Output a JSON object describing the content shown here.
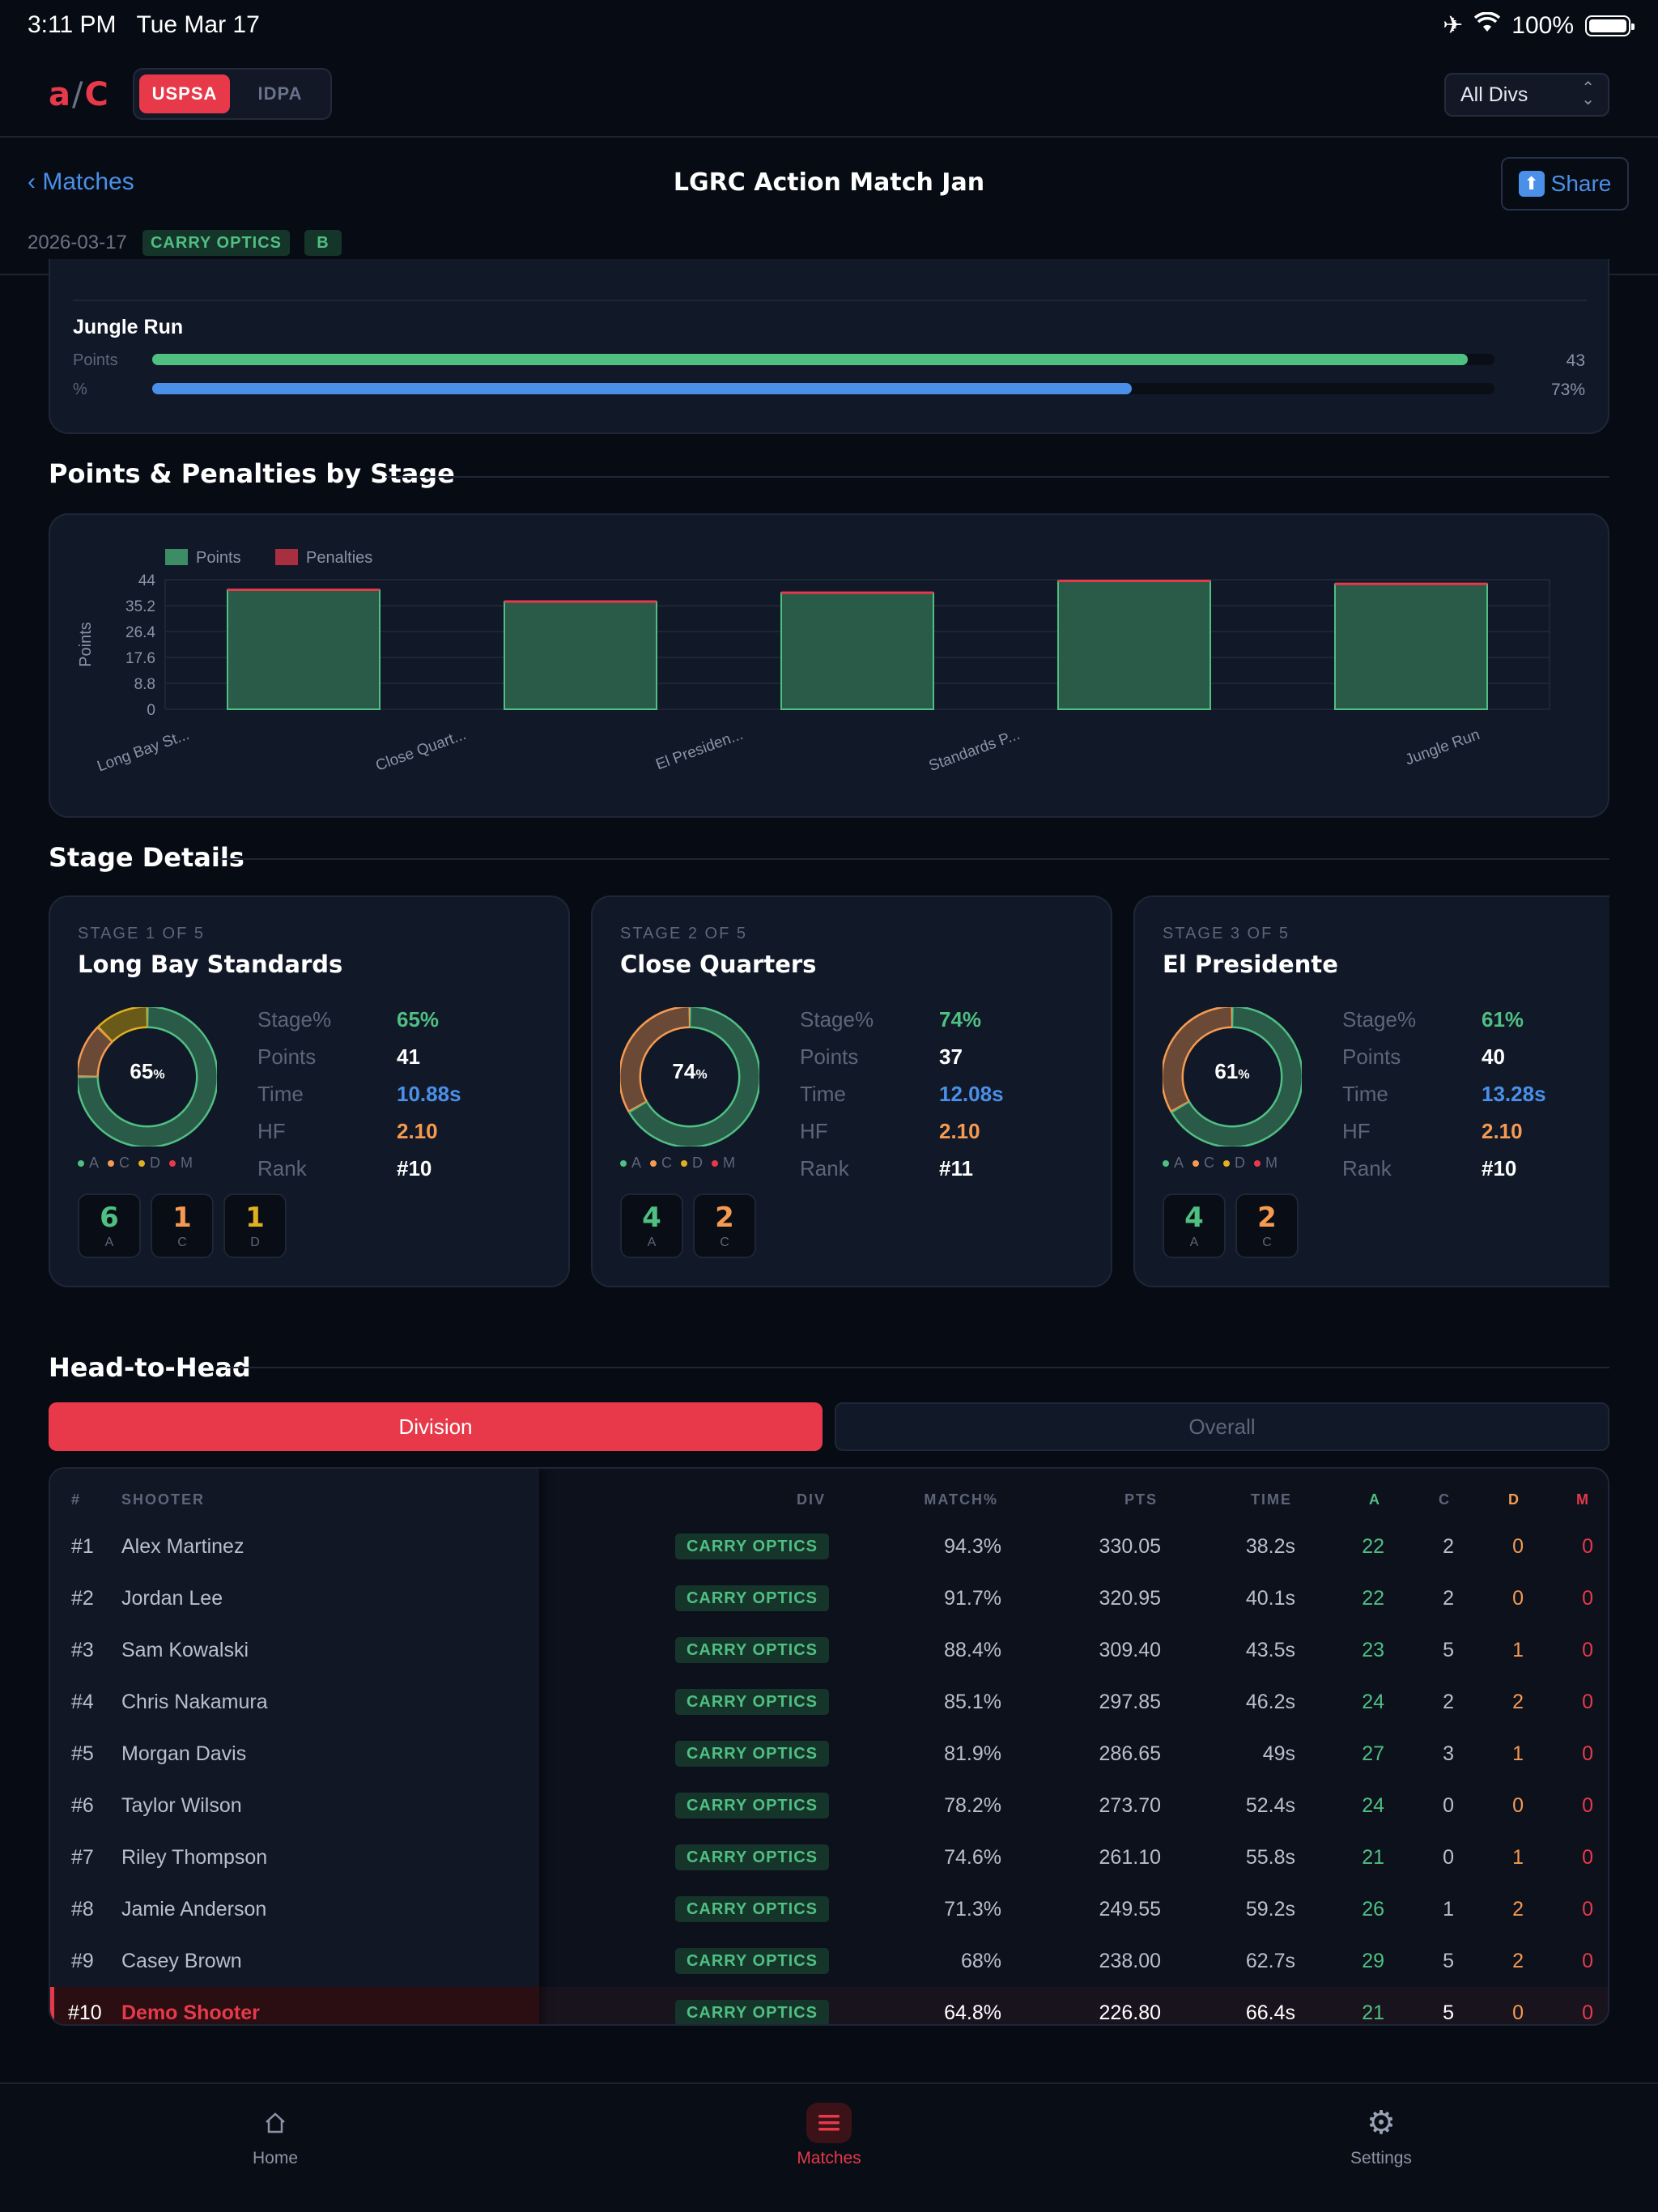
{
  "status_bar": {
    "time": "3:11 PM",
    "date": "Tue Mar 17",
    "battery": "100%"
  },
  "top_bar": {
    "logo_left": "a",
    "logo_sep": "/",
    "logo_right": "C",
    "segments": [
      "USPSA",
      "IDPA"
    ],
    "active_segment": "USPSA",
    "division_select": "All Divs"
  },
  "match_header": {
    "back_label": "‹ Matches",
    "title": "LGRC Action Match Jan",
    "share_label": "Share",
    "date": "2026-03-17",
    "division_tag": "CARRY OPTICS",
    "class_tag": "B"
  },
  "stage_bars": {
    "name": "Jungle Run",
    "points_label": "Points",
    "points_value": "43",
    "points_fraction": 0.98,
    "percent_label": "%",
    "percent_value": "73%",
    "percent_fraction": 0.73
  },
  "points_section": {
    "title": "Points & Penalties by Stage"
  },
  "chart_data": {
    "type": "bar",
    "stacked": true,
    "title": "",
    "xlabel": "",
    "ylabel": "Points",
    "ylim": [
      0,
      44
    ],
    "yticks": [
      "44",
      "35.2",
      "26.4",
      "17.6",
      "8.8",
      "0"
    ],
    "categories": [
      "Long Bay St...",
      "Close Quart...",
      "El Presiden...",
      "Standards P...",
      "Jungle Run"
    ],
    "series": [
      {
        "name": "Points",
        "values": [
          40.5,
          36.5,
          39.5,
          43.5,
          42.5
        ],
        "color": "#4fbf82"
      },
      {
        "name": "Penalties",
        "values": [
          0.5,
          0.5,
          0.5,
          0.5,
          0.5
        ],
        "color": "#e8394a"
      }
    ],
    "legend_position": "top-left",
    "grid": true
  },
  "stage_details": {
    "title": "Stage Details",
    "stages": [
      {
        "label": "STAGE 1 OF 5",
        "name": "Long Bay Standards",
        "ring_pct": "65",
        "stats": {
          "stage_pct": "65%",
          "points": "41",
          "time": "10.88s",
          "hf": "2.10",
          "rank": "#10"
        },
        "chips": [
          {
            "n": "6",
            "l": "A"
          },
          {
            "n": "1",
            "l": "C"
          },
          {
            "n": "1",
            "l": "D"
          }
        ],
        "ring": {
          "A": 6,
          "C": 1,
          "D": 1
        }
      },
      {
        "label": "STAGE 2 OF 5",
        "name": "Close Quarters",
        "ring_pct": "74",
        "stats": {
          "stage_pct": "74%",
          "points": "37",
          "time": "12.08s",
          "hf": "2.10",
          "rank": "#11"
        },
        "chips": [
          {
            "n": "4",
            "l": "A"
          },
          {
            "n": "2",
            "l": "C"
          }
        ],
        "ring": {
          "A": 4,
          "C": 2,
          "D": 0
        }
      },
      {
        "label": "STAGE 3 OF 5",
        "name": "El Presidente",
        "ring_pct": "61",
        "stats": {
          "stage_pct": "61%",
          "points": "40",
          "time": "13.28s",
          "hf": "2.10",
          "rank": "#10"
        },
        "chips": [
          {
            "n": "4",
            "l": "A"
          },
          {
            "n": "2",
            "l": "C"
          }
        ],
        "ring": {
          "A": 4,
          "C": 2,
          "D": 0
        }
      }
    ],
    "stat_labels": {
      "stage_pct": "Stage%",
      "points": "Points",
      "time": "Time",
      "hf": "HF",
      "rank": "Rank"
    },
    "legend": [
      "A",
      "C",
      "D",
      "M"
    ]
  },
  "head_to_head": {
    "title": "Head-to-Head",
    "tabs": [
      "Division",
      "Overall"
    ],
    "active_tab": "Division",
    "columns": [
      "#",
      "SHOOTER",
      "DIV",
      "MATCH%",
      "PTS",
      "TIME",
      "A",
      "C",
      "D",
      "M"
    ],
    "rows": [
      [
        "#1",
        "Alex Martinez",
        "CARRY OPTICS",
        "94.3%",
        "330.05",
        "38.2s",
        "22",
        "2",
        "0",
        "0"
      ],
      [
        "#2",
        "Jordan Lee",
        "CARRY OPTICS",
        "91.7%",
        "320.95",
        "40.1s",
        "22",
        "2",
        "0",
        "0"
      ],
      [
        "#3",
        "Sam Kowalski",
        "CARRY OPTICS",
        "88.4%",
        "309.40",
        "43.5s",
        "23",
        "5",
        "1",
        "0"
      ],
      [
        "#4",
        "Chris Nakamura",
        "CARRY OPTICS",
        "85.1%",
        "297.85",
        "46.2s",
        "24",
        "2",
        "2",
        "0"
      ],
      [
        "#5",
        "Morgan Davis",
        "CARRY OPTICS",
        "81.9%",
        "286.65",
        "49s",
        "27",
        "3",
        "1",
        "0"
      ],
      [
        "#6",
        "Taylor Wilson",
        "CARRY OPTICS",
        "78.2%",
        "273.70",
        "52.4s",
        "24",
        "0",
        "0",
        "0"
      ],
      [
        "#7",
        "Riley Thompson",
        "CARRY OPTICS",
        "74.6%",
        "261.10",
        "55.8s",
        "21",
        "0",
        "1",
        "0"
      ],
      [
        "#8",
        "Jamie Anderson",
        "CARRY OPTICS",
        "71.3%",
        "249.55",
        "59.2s",
        "26",
        "1",
        "2",
        "0"
      ],
      [
        "#9",
        "Casey Brown",
        "CARRY OPTICS",
        "68%",
        "238.00",
        "62.7s",
        "29",
        "5",
        "2",
        "0"
      ],
      [
        "#10",
        "Demo Shooter",
        "CARRY OPTICS",
        "64.8%",
        "226.80",
        "66.4s",
        "21",
        "5",
        "0",
        "0"
      ]
    ],
    "highlight_row": 9
  },
  "bottom_nav": {
    "items": [
      {
        "label": "Home",
        "icon": "home-icon"
      },
      {
        "label": "Matches",
        "icon": "list-icon"
      },
      {
        "label": "Settings",
        "icon": "gear-icon"
      }
    ],
    "active": "Matches"
  },
  "colors": {
    "accent": "#e8394a",
    "green": "#4fbf82",
    "blue": "#4a90e8",
    "orange": "#f59a50",
    "yellow": "#e0b020",
    "bg": "#070b14",
    "card": "#111827"
  }
}
